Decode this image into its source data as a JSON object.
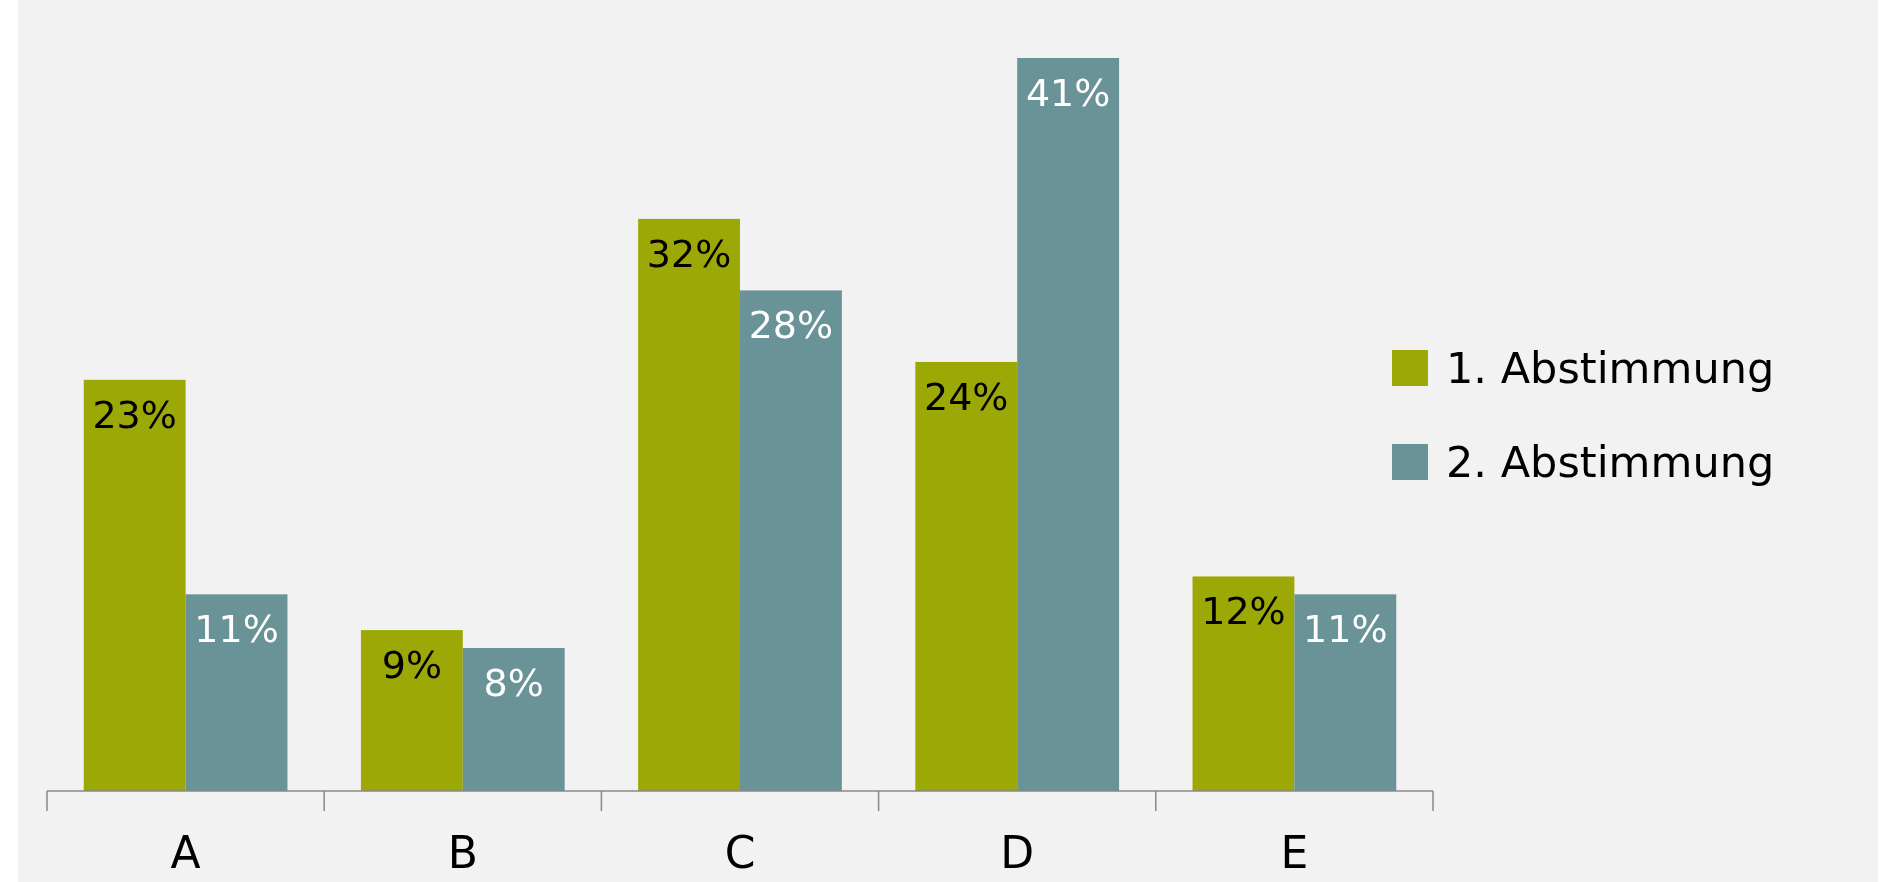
{
  "chart_data": {
    "type": "bar",
    "categories": [
      "A",
      "B",
      "C",
      "D",
      "E"
    ],
    "series": [
      {
        "name": "1. Abstimmung",
        "color": "#9ca806",
        "values": [
          23,
          9,
          32,
          24,
          12
        ],
        "value_labels": [
          "23%",
          "9%",
          "32%",
          "24%",
          "12%"
        ]
      },
      {
        "name": "2. Abstimmung",
        "color": "#6a9397",
        "values": [
          11,
          8,
          28,
          41,
          11
        ],
        "value_labels": [
          "11%",
          "8%",
          "28%",
          "41%",
          "11%"
        ]
      }
    ],
    "legend": "right"
  }
}
